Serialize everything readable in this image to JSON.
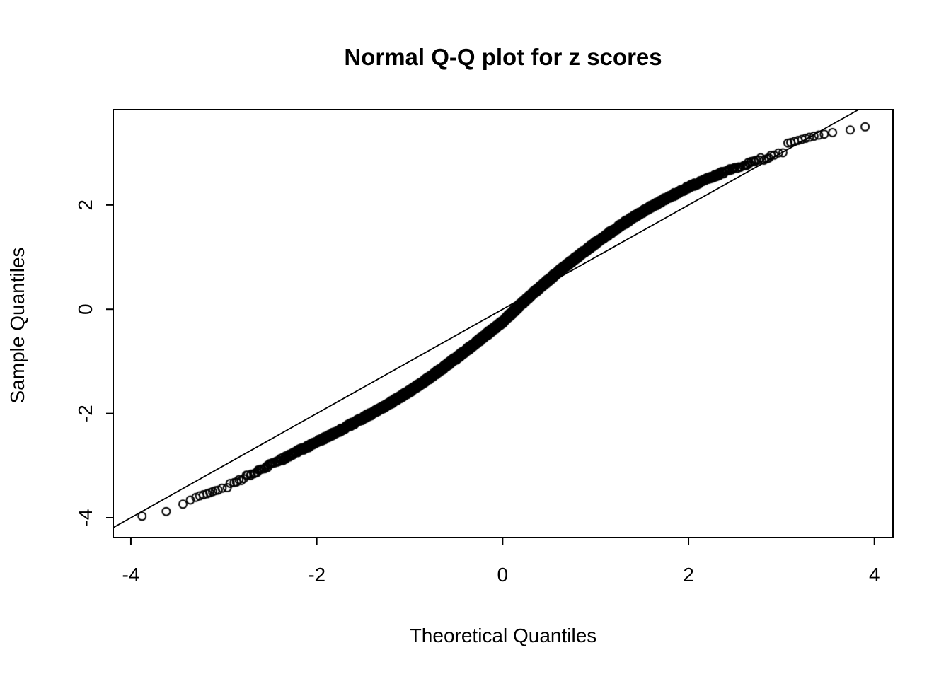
{
  "chart_data": {
    "type": "scatter",
    "title": "Normal Q-Q plot for z scores",
    "xlabel": "Theoretical Quantiles",
    "ylabel": "Sample Quantiles",
    "x_ticks": [
      -4,
      -2,
      0,
      2,
      4
    ],
    "y_ticks": [
      -4,
      -2,
      0,
      2
    ],
    "xlim": [
      -4.19,
      4.2
    ],
    "ylim": [
      -4.38,
      3.83
    ],
    "grid": false,
    "legend": "none",
    "marker": "open-circle",
    "point_color": "#000000",
    "reference_line": {
      "intercept": 0,
      "slope": 1,
      "color": "#000000"
    },
    "n_points_approx": 5000,
    "curve": {
      "comment": "S-shaped empirical quantile curve: sample quantile y as function of theoretical quantile x",
      "x": [
        -3.9,
        -3.6,
        -3.4,
        -3.2,
        -3.0,
        -2.8,
        -2.6,
        -2.4,
        -2.2,
        -2.0,
        -1.8,
        -1.6,
        -1.4,
        -1.2,
        -1.0,
        -0.8,
        -0.6,
        -0.4,
        -0.2,
        0.0,
        0.2,
        0.4,
        0.6,
        0.8,
        1.0,
        1.2,
        1.4,
        1.6,
        1.8,
        2.0,
        2.2,
        2.4,
        2.6,
        2.8,
        3.0,
        3.2,
        3.4,
        3.6,
        3.9
      ],
      "y": [
        -3.95,
        -3.88,
        -3.72,
        -3.55,
        -3.42,
        -3.25,
        -3.07,
        -2.9,
        -2.72,
        -2.55,
        -2.37,
        -2.18,
        -1.99,
        -1.79,
        -1.57,
        -1.33,
        -1.07,
        -0.8,
        -0.52,
        -0.24,
        0.1,
        0.42,
        0.72,
        1.0,
        1.27,
        1.52,
        1.76,
        1.97,
        2.16,
        2.34,
        2.5,
        2.64,
        2.77,
        2.89,
        3.0,
        3.1,
        3.2,
        3.3,
        3.45
      ]
    },
    "tail_points_left": [
      [
        -3.88,
        -3.97
      ],
      [
        -3.62,
        -3.88
      ],
      [
        -3.44,
        -3.74
      ],
      [
        -3.36,
        -3.66
      ],
      [
        -3.3,
        -3.61
      ],
      [
        -3.26,
        -3.58
      ],
      [
        -3.22,
        -3.56
      ],
      [
        -3.18,
        -3.54
      ],
      [
        -3.15,
        -3.52
      ],
      [
        -3.12,
        -3.5
      ],
      [
        -3.09,
        -3.48
      ],
      [
        -3.06,
        -3.47
      ]
    ],
    "tail_points_right": [
      [
        3.9,
        3.5
      ],
      [
        3.74,
        3.44
      ],
      [
        3.55,
        3.39
      ],
      [
        3.46,
        3.36
      ],
      [
        3.4,
        3.34
      ],
      [
        3.35,
        3.32
      ],
      [
        3.3,
        3.3
      ],
      [
        3.26,
        3.28
      ],
      [
        3.22,
        3.26
      ],
      [
        3.18,
        3.24
      ],
      [
        3.14,
        3.22
      ],
      [
        3.1,
        3.2
      ],
      [
        3.07,
        3.19
      ]
    ]
  }
}
